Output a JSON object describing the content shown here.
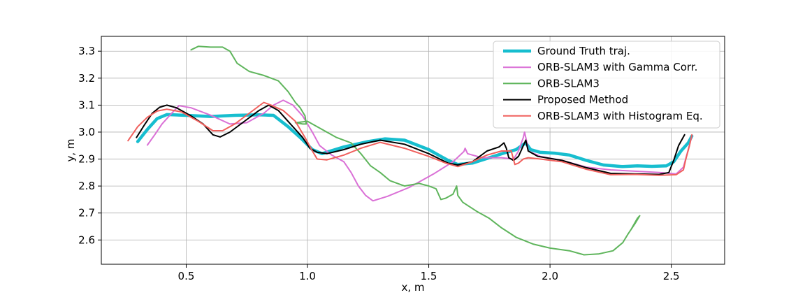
{
  "chart_data": {
    "type": "line",
    "title": "",
    "xlabel": "x, m",
    "ylabel": "y, m",
    "xlim": [
      0.15,
      2.72
    ],
    "ylim": [
      2.51,
      3.355
    ],
    "xticks": [
      0.5,
      1.0,
      1.5,
      2.0,
      2.5
    ],
    "xtick_labels": [
      "0.5",
      "1.0",
      "1.5",
      "2.0",
      "2.5"
    ],
    "yticks": [
      2.6,
      2.7,
      2.8,
      2.9,
      3.0,
      3.1,
      3.2,
      3.3
    ],
    "ytick_labels": [
      "2.6",
      "2.7",
      "2.8",
      "2.9",
      "3.0",
      "3.1",
      "3.2",
      "3.3"
    ],
    "grid": true,
    "legend_position": "top-right",
    "series": [
      {
        "name": "Ground Truth traj.",
        "color": "#17becf",
        "width": "thick",
        "points": [
          [
            0.3,
            2.965
          ],
          [
            0.34,
            3.01
          ],
          [
            0.38,
            3.05
          ],
          [
            0.42,
            3.065
          ],
          [
            0.5,
            3.062
          ],
          [
            0.6,
            3.058
          ],
          [
            0.7,
            3.062
          ],
          [
            0.8,
            3.064
          ],
          [
            0.86,
            3.062
          ],
          [
            0.92,
            3.02
          ],
          [
            0.97,
            2.98
          ],
          [
            1.02,
            2.935
          ],
          [
            1.06,
            2.92
          ],
          [
            1.15,
            2.945
          ],
          [
            1.25,
            2.965
          ],
          [
            1.32,
            2.975
          ],
          [
            1.4,
            2.97
          ],
          [
            1.5,
            2.935
          ],
          [
            1.58,
            2.895
          ],
          [
            1.62,
            2.88
          ],
          [
            1.68,
            2.885
          ],
          [
            1.75,
            2.905
          ],
          [
            1.82,
            2.925
          ],
          [
            1.86,
            2.935
          ],
          [
            1.9,
            2.96
          ],
          [
            1.92,
            2.935
          ],
          [
            1.96,
            2.925
          ],
          [
            2.02,
            2.922
          ],
          [
            2.08,
            2.915
          ],
          [
            2.15,
            2.895
          ],
          [
            2.22,
            2.878
          ],
          [
            2.3,
            2.872
          ],
          [
            2.36,
            2.875
          ],
          [
            2.42,
            2.873
          ],
          [
            2.48,
            2.875
          ],
          [
            2.51,
            2.89
          ],
          [
            2.54,
            2.93
          ],
          [
            2.57,
            2.96
          ],
          [
            2.585,
            2.985
          ]
        ]
      },
      {
        "name": "ORB-SLAM3 with Gamma Corr.",
        "color": "#da70d6",
        "width": "normal",
        "points": [
          [
            0.34,
            2.952
          ],
          [
            0.37,
            2.99
          ],
          [
            0.4,
            3.03
          ],
          [
            0.44,
            3.07
          ],
          [
            0.47,
            3.098
          ],
          [
            0.52,
            3.09
          ],
          [
            0.6,
            3.063
          ],
          [
            0.68,
            3.03
          ],
          [
            0.75,
            3.035
          ],
          [
            0.82,
            3.07
          ],
          [
            0.86,
            3.1
          ],
          [
            0.9,
            3.118
          ],
          [
            0.94,
            3.1
          ],
          [
            0.98,
            3.06
          ],
          [
            1.02,
            3.0
          ],
          [
            1.05,
            2.95
          ],
          [
            1.1,
            2.915
          ],
          [
            1.15,
            2.89
          ],
          [
            1.18,
            2.85
          ],
          [
            1.21,
            2.8
          ],
          [
            1.24,
            2.765
          ],
          [
            1.27,
            2.745
          ],
          [
            1.33,
            2.762
          ],
          [
            1.42,
            2.795
          ],
          [
            1.52,
            2.845
          ],
          [
            1.6,
            2.89
          ],
          [
            1.645,
            2.928
          ],
          [
            1.65,
            2.94
          ],
          [
            1.66,
            2.92
          ],
          [
            1.72,
            2.905
          ],
          [
            1.8,
            2.905
          ],
          [
            1.85,
            2.9
          ],
          [
            1.87,
            2.93
          ],
          [
            1.89,
            2.98
          ],
          [
            1.895,
            3.0
          ],
          [
            1.905,
            2.96
          ],
          [
            1.91,
            2.93
          ],
          [
            1.96,
            2.91
          ],
          [
            2.05,
            2.895
          ],
          [
            2.15,
            2.87
          ],
          [
            2.25,
            2.86
          ],
          [
            2.35,
            2.855
          ],
          [
            2.45,
            2.85
          ],
          [
            2.52,
            2.845
          ],
          [
            2.55,
            2.87
          ],
          [
            2.57,
            2.935
          ],
          [
            2.585,
            2.985
          ]
        ]
      },
      {
        "name": "ORB-SLAM3",
        "color": "#5fb55c",
        "width": "normal",
        "points": [
          [
            0.52,
            3.305
          ],
          [
            0.55,
            3.318
          ],
          [
            0.6,
            3.315
          ],
          [
            0.65,
            3.315
          ],
          [
            0.68,
            3.3
          ],
          [
            0.71,
            3.255
          ],
          [
            0.76,
            3.225
          ],
          [
            0.82,
            3.21
          ],
          [
            0.88,
            3.19
          ],
          [
            0.92,
            3.15
          ],
          [
            0.95,
            3.11
          ],
          [
            0.97,
            3.09
          ],
          [
            0.99,
            3.06
          ],
          [
            0.995,
            3.03
          ],
          [
            0.98,
            3.03
          ],
          [
            0.95,
            3.035
          ],
          [
            1.0,
            3.04
          ],
          [
            1.04,
            3.02
          ],
          [
            1.08,
            3.0
          ],
          [
            1.12,
            2.98
          ],
          [
            1.18,
            2.96
          ],
          [
            1.22,
            2.92
          ],
          [
            1.26,
            2.875
          ],
          [
            1.3,
            2.85
          ],
          [
            1.34,
            2.82
          ],
          [
            1.4,
            2.8
          ],
          [
            1.46,
            2.81
          ],
          [
            1.5,
            2.8
          ],
          [
            1.53,
            2.79
          ],
          [
            1.55,
            2.75
          ],
          [
            1.57,
            2.755
          ],
          [
            1.6,
            2.77
          ],
          [
            1.615,
            2.8
          ],
          [
            1.62,
            2.765
          ],
          [
            1.64,
            2.74
          ],
          [
            1.7,
            2.705
          ],
          [
            1.75,
            2.68
          ],
          [
            1.8,
            2.645
          ],
          [
            1.86,
            2.61
          ],
          [
            1.93,
            2.585
          ],
          [
            2.0,
            2.57
          ],
          [
            2.08,
            2.56
          ],
          [
            2.14,
            2.545
          ],
          [
            2.2,
            2.548
          ],
          [
            2.26,
            2.56
          ],
          [
            2.3,
            2.59
          ],
          [
            2.32,
            2.62
          ],
          [
            2.35,
            2.66
          ],
          [
            2.37,
            2.69
          ],
          [
            2.36,
            2.68
          ],
          [
            2.335,
            2.64
          ]
        ]
      },
      {
        "name": "Proposed Method",
        "color": "#000000",
        "width": "normal",
        "points": [
          [
            0.295,
            2.98
          ],
          [
            0.33,
            3.03
          ],
          [
            0.36,
            3.07
          ],
          [
            0.39,
            3.092
          ],
          [
            0.42,
            3.1
          ],
          [
            0.46,
            3.09
          ],
          [
            0.52,
            3.06
          ],
          [
            0.57,
            3.03
          ],
          [
            0.61,
            2.99
          ],
          [
            0.64,
            2.982
          ],
          [
            0.68,
            3.0
          ],
          [
            0.74,
            3.04
          ],
          [
            0.8,
            3.08
          ],
          [
            0.84,
            3.1
          ],
          [
            0.88,
            3.08
          ],
          [
            0.93,
            3.03
          ],
          [
            0.98,
            2.98
          ],
          [
            1.01,
            2.94
          ],
          [
            1.04,
            2.925
          ],
          [
            1.08,
            2.92
          ],
          [
            1.15,
            2.935
          ],
          [
            1.22,
            2.955
          ],
          [
            1.3,
            2.97
          ],
          [
            1.4,
            2.955
          ],
          [
            1.5,
            2.92
          ],
          [
            1.58,
            2.885
          ],
          [
            1.62,
            2.878
          ],
          [
            1.68,
            2.89
          ],
          [
            1.74,
            2.93
          ],
          [
            1.79,
            2.945
          ],
          [
            1.81,
            2.96
          ],
          [
            1.82,
            2.94
          ],
          [
            1.83,
            2.905
          ],
          [
            1.85,
            2.895
          ],
          [
            1.87,
            2.91
          ],
          [
            1.88,
            2.93
          ],
          [
            1.9,
            2.97
          ],
          [
            1.91,
            2.93
          ],
          [
            1.95,
            2.91
          ],
          [
            2.05,
            2.895
          ],
          [
            2.15,
            2.868
          ],
          [
            2.25,
            2.847
          ],
          [
            2.35,
            2.845
          ],
          [
            2.45,
            2.843
          ],
          [
            2.49,
            2.85
          ],
          [
            2.51,
            2.895
          ],
          [
            2.53,
            2.95
          ],
          [
            2.555,
            2.99
          ]
        ]
      },
      {
        "name": "ORB-SLAM3 with Histogram Eq.",
        "color": "#f0605d",
        "width": "normal",
        "points": [
          [
            0.26,
            2.968
          ],
          [
            0.3,
            3.02
          ],
          [
            0.34,
            3.055
          ],
          [
            0.38,
            3.078
          ],
          [
            0.42,
            3.085
          ],
          [
            0.48,
            3.075
          ],
          [
            0.55,
            3.04
          ],
          [
            0.61,
            3.005
          ],
          [
            0.65,
            3.005
          ],
          [
            0.7,
            3.03
          ],
          [
            0.76,
            3.07
          ],
          [
            0.82,
            3.11
          ],
          [
            0.85,
            3.1
          ],
          [
            0.9,
            3.08
          ],
          [
            0.95,
            3.04
          ],
          [
            0.99,
            2.98
          ],
          [
            1.02,
            2.93
          ],
          [
            1.04,
            2.9
          ],
          [
            1.08,
            2.897
          ],
          [
            1.15,
            2.915
          ],
          [
            1.22,
            2.94
          ],
          [
            1.3,
            2.962
          ],
          [
            1.4,
            2.94
          ],
          [
            1.5,
            2.91
          ],
          [
            1.57,
            2.885
          ],
          [
            1.62,
            2.872
          ],
          [
            1.68,
            2.89
          ],
          [
            1.74,
            2.915
          ],
          [
            1.8,
            2.93
          ],
          [
            1.84,
            2.93
          ],
          [
            1.855,
            2.88
          ],
          [
            1.87,
            2.885
          ],
          [
            1.89,
            2.9
          ],
          [
            1.91,
            2.905
          ],
          [
            1.96,
            2.9
          ],
          [
            2.05,
            2.89
          ],
          [
            2.15,
            2.862
          ],
          [
            2.25,
            2.842
          ],
          [
            2.35,
            2.843
          ],
          [
            2.45,
            2.84
          ],
          [
            2.52,
            2.842
          ],
          [
            2.55,
            2.86
          ],
          [
            2.56,
            2.9
          ],
          [
            2.575,
            2.95
          ],
          [
            2.585,
            2.99
          ]
        ]
      }
    ]
  }
}
